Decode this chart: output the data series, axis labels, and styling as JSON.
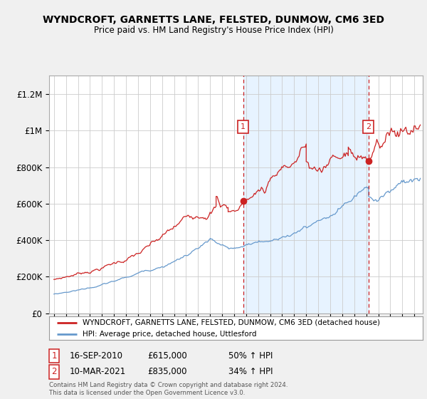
{
  "title": "WYNDCROFT, GARNETTS LANE, FELSTED, DUNMOW, CM6 3ED",
  "subtitle": "Price paid vs. HM Land Registry's House Price Index (HPI)",
  "ylim": [
    0,
    1300000
  ],
  "yticks": [
    0,
    200000,
    400000,
    600000,
    800000,
    1000000,
    1200000
  ],
  "ytick_labels": [
    "£0",
    "£200K",
    "£400K",
    "£600K",
    "£800K",
    "£1M",
    "£1.2M"
  ],
  "xlim_left": 1994.6,
  "xlim_right": 2025.7,
  "year_start": 1995,
  "year_end": 2025,
  "sale1_x": 2010.75,
  "sale1_y": 615000,
  "sale1_label": "1",
  "sale2_x": 2021.19,
  "sale2_y": 835000,
  "sale2_label": "2",
  "red_color": "#cc2222",
  "blue_color": "#6699cc",
  "shade_color": "#ddeeff",
  "vline_color": "#cc2222",
  "legend_label_red": "WYNDCROFT, GARNETTS LANE, FELSTED, DUNMOW, CM6 3ED (detached house)",
  "legend_label_blue": "HPI: Average price, detached house, Uttlesford",
  "footnote": "Contains HM Land Registry data © Crown copyright and database right 2024.\nThis data is licensed under the Open Government Licence v3.0.",
  "bg_color": "#f0f0f0",
  "plot_bg": "#ffffff",
  "grid_color": "#cccccc"
}
